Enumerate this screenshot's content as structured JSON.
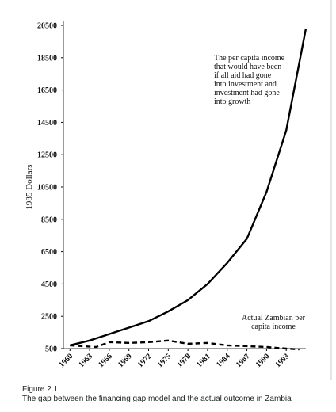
{
  "chart_data": {
    "type": "line",
    "ylabel": "1985 Dollars",
    "xlim": [
      1959,
      1996
    ],
    "xticks": [
      1960,
      1963,
      1966,
      1969,
      1972,
      1975,
      1978,
      1981,
      1984,
      1987,
      1990,
      1993
    ],
    "ylim": [
      500,
      20500
    ],
    "yticks": [
      500,
      2500,
      4500,
      6500,
      8500,
      10500,
      12500,
      14500,
      16500,
      18500,
      20500
    ],
    "series": [
      {
        "name": "The per capita income that would have been if all aid had gone into investment and investment had gone into growth",
        "color": "#000000",
        "dash": "solid",
        "x": [
          1960,
          1963,
          1966,
          1969,
          1972,
          1975,
          1978,
          1981,
          1984,
          1987,
          1990,
          1993,
          1996
        ],
        "values": [
          700,
          1000,
          1400,
          1800,
          2200,
          2800,
          3500,
          4500,
          5800,
          7300,
          10200,
          14000,
          20300
        ]
      },
      {
        "name": "Actual Zambian per capita income",
        "color": "#000000",
        "dash": "dashed",
        "x": [
          1960,
          1962,
          1964,
          1966,
          1969,
          1972,
          1975,
          1978,
          1981,
          1984,
          1987,
          1990,
          1993,
          1995
        ],
        "values": [
          700,
          650,
          600,
          900,
          850,
          900,
          1000,
          800,
          850,
          700,
          650,
          600,
          500,
          450
        ]
      }
    ],
    "caption_label": "Figure 2.1",
    "caption": "The gap between the financing gap model and the actual outcome in Zambia"
  }
}
